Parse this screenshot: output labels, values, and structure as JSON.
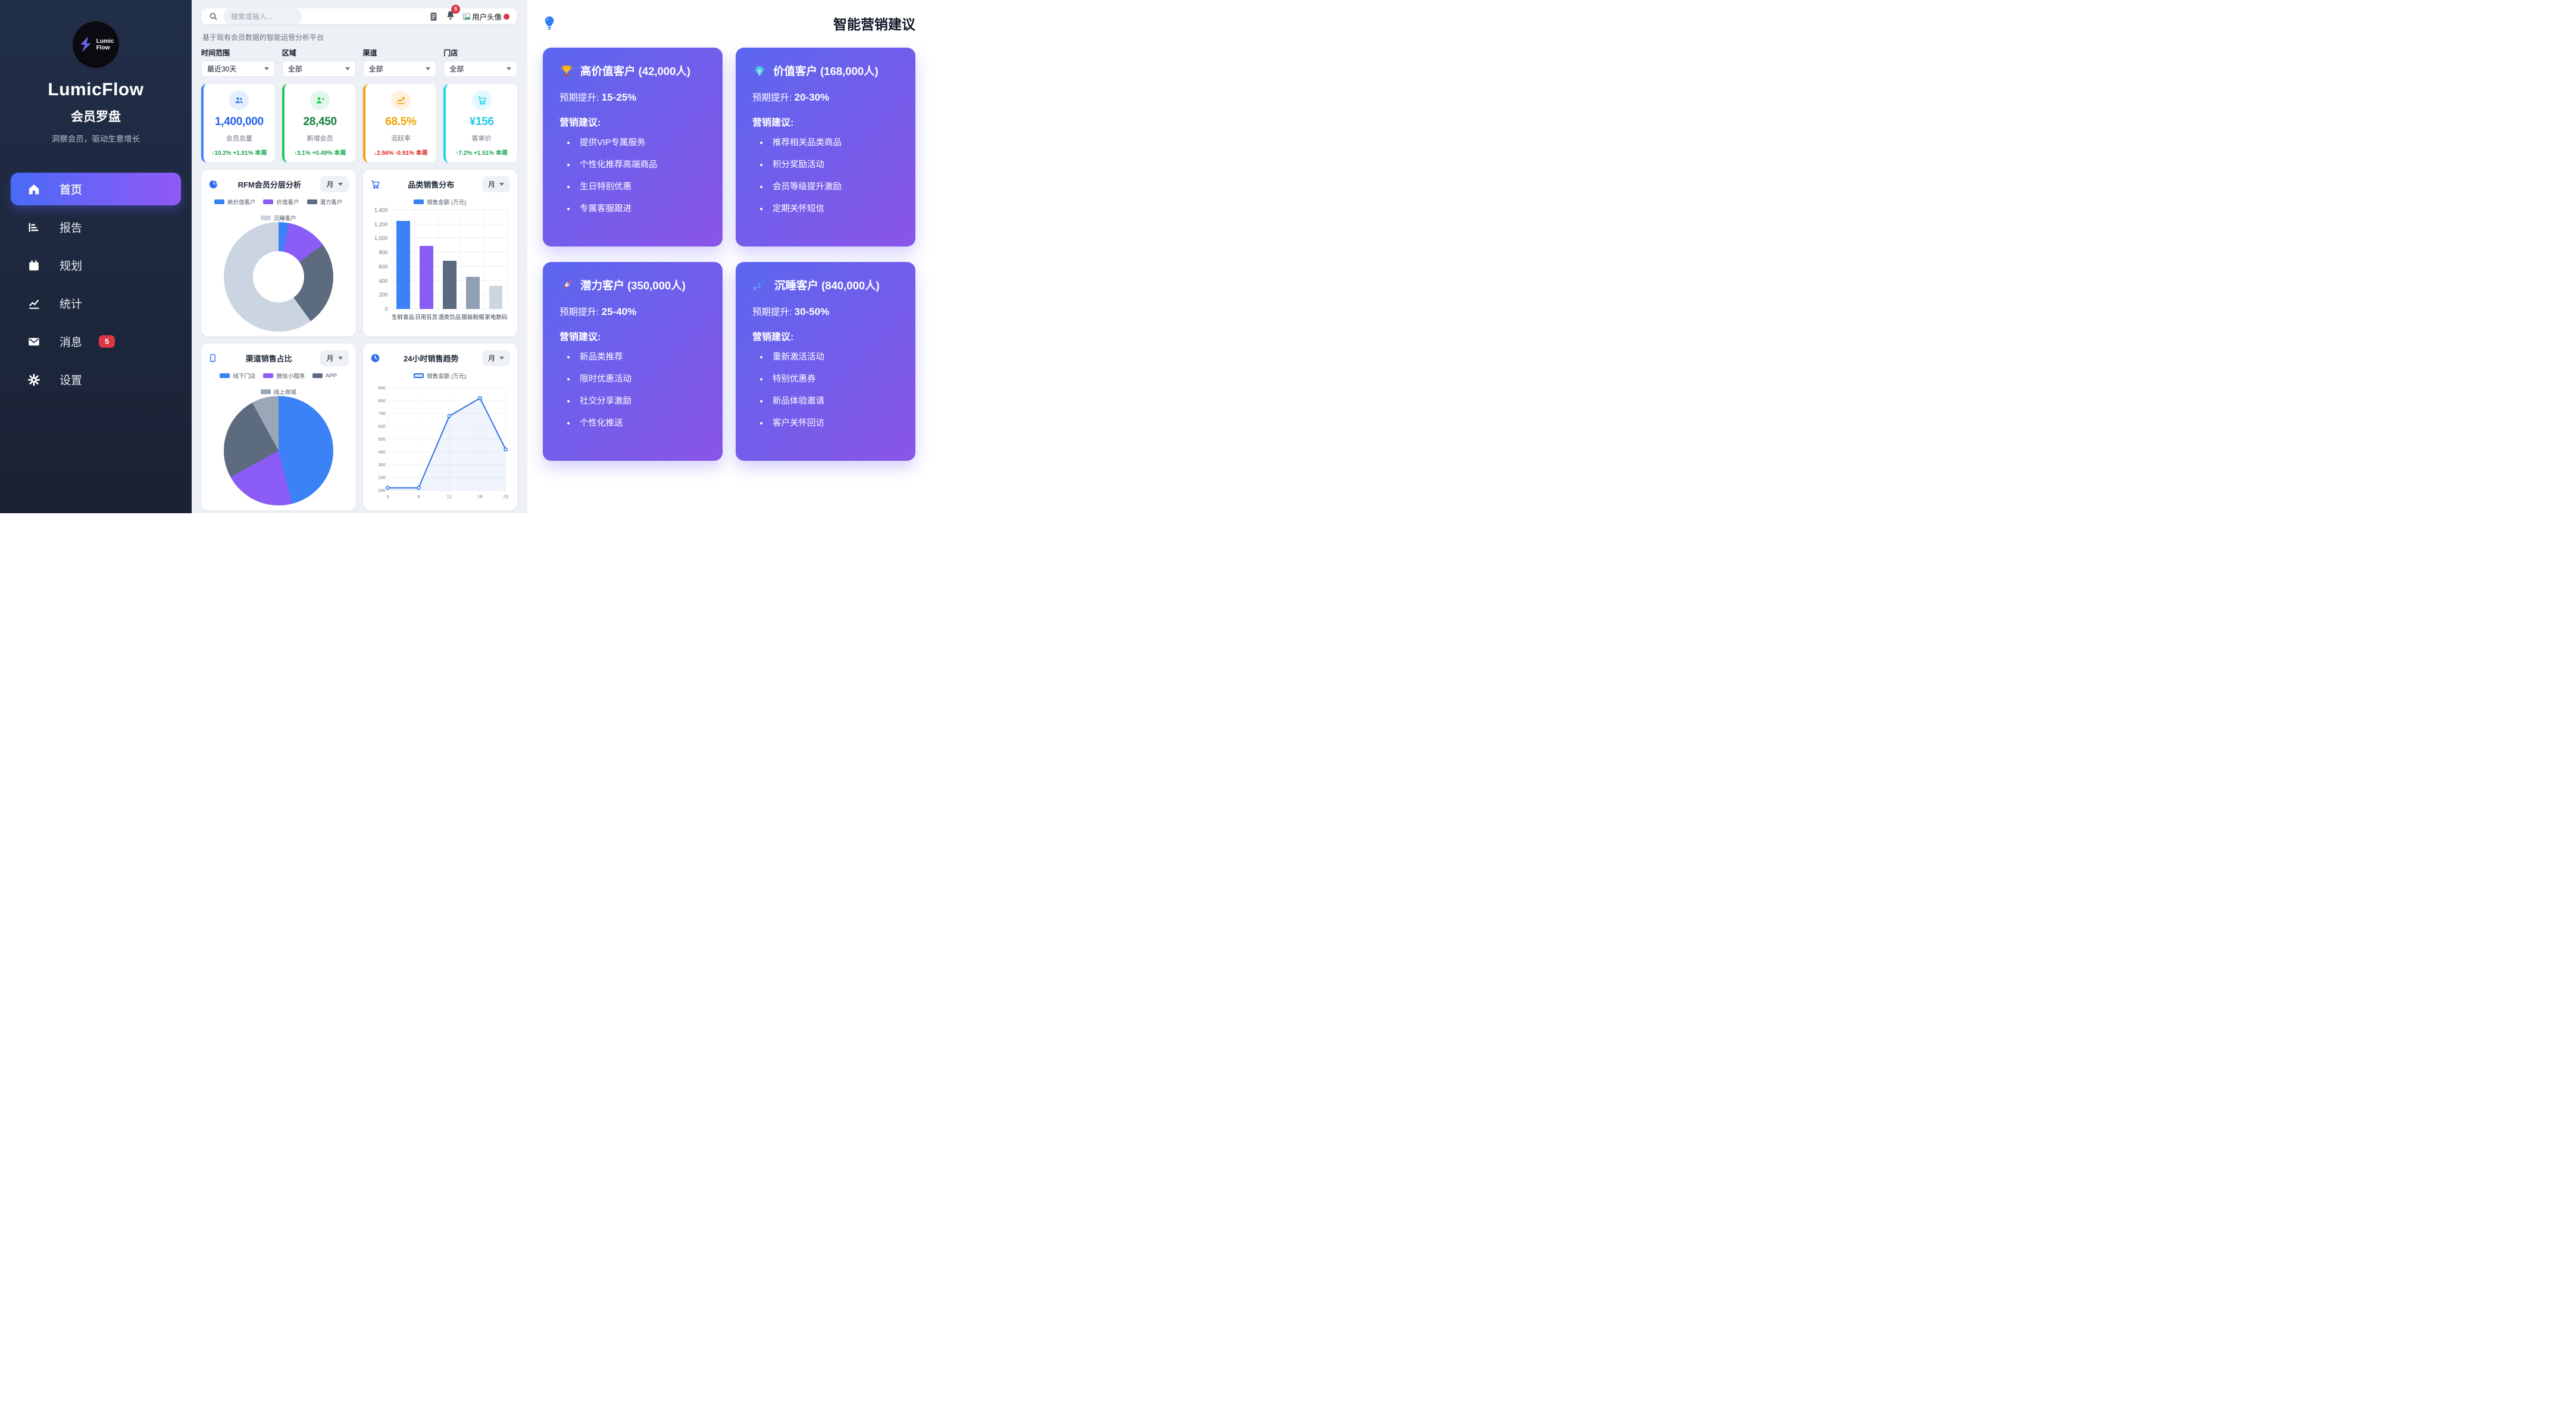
{
  "sidebar": {
    "logo_line1": "Lumic",
    "logo_line2": "Flow",
    "brand": "LumicFlow",
    "subtitle": "会员罗盘",
    "tagline": "洞察会员，驱动生意增长",
    "items": [
      {
        "label": "首页",
        "icon": "home-icon",
        "active": true
      },
      {
        "label": "报告",
        "icon": "report-icon"
      },
      {
        "label": "规划",
        "icon": "calendar-icon"
      },
      {
        "label": "统计",
        "icon": "line-chart-icon"
      },
      {
        "label": "消息",
        "icon": "mail-icon",
        "badge": "5"
      },
      {
        "label": "设置",
        "icon": "gear-icon"
      }
    ]
  },
  "topbar": {
    "search_placeholder": "搜索或输入...",
    "notification_count": "5",
    "avatar_label": "用户头像",
    "icons": [
      "document-icon",
      "bell-icon",
      "broken-image-icon",
      "presence-dot"
    ]
  },
  "filters": {
    "description": "基于现有会员数据的智能运营分析平台",
    "fields": [
      {
        "label": "时间范围",
        "value": "最近30天"
      },
      {
        "label": "区域",
        "value": "全部"
      },
      {
        "label": "渠道",
        "value": "全部"
      },
      {
        "label": "门店",
        "value": "全部"
      }
    ]
  },
  "stats": [
    {
      "value": "1,400,000",
      "label": "会员总量",
      "delta": "↑10.2% +1.01% 本周",
      "num_color": "#2563eb",
      "accent": "#3b82f6",
      "delta_color": "#16a34a",
      "icon": "users-icon"
    },
    {
      "value": "28,450",
      "label": "新增会员",
      "delta": "↑3.1% +0.49% 本周",
      "num_color": "#15803d",
      "accent": "#22c55e",
      "delta_color": "#16a34a",
      "icon": "user-plus-icon"
    },
    {
      "value": "68.5%",
      "label": "活跃率",
      "delta": "↓2.56% -0.91% 本周",
      "num_color": "#f0a400",
      "accent": "#f59e0b",
      "delta_color": "#dc2626",
      "icon": "trend-icon"
    },
    {
      "value": "¥156",
      "label": "客单价",
      "delta": "↑7.2% +1.51% 本周",
      "num_color": "#22c8e6",
      "accent": "#22d3ee",
      "delta_color": "#16a34a",
      "icon": "cart-icon"
    }
  ],
  "chart_data": [
    {
      "id": "rfm",
      "type": "donut",
      "title": "RFM会员分层分析",
      "period": "月",
      "icon": "pie-chart-icon",
      "labels": [
        "高价值客户",
        "价值客户",
        "潜力客户",
        "沉睡客户"
      ],
      "values": [
        3,
        12,
        25,
        60
      ],
      "unit": "%",
      "colors": [
        "#3b82f6",
        "#8b5cf6",
        "#5d6b7f",
        "#cbd5e1"
      ],
      "legend_position": "top",
      "hole": 0.5
    },
    {
      "id": "category",
      "type": "bar",
      "title": "品类销售分布",
      "period": "月",
      "icon": "cart-icon",
      "legend_label": "销售金额 (万元)",
      "categories": [
        "生鲜食品",
        "日用百货",
        "酒类饮品",
        "服装鞋帽",
        "家电数码"
      ],
      "values": [
        1250,
        890,
        680,
        455,
        325
      ],
      "colors": [
        "#3b82f6",
        "#8b5cf6",
        "#5d6b7f",
        "#8fa0b4",
        "#cdd6e0"
      ],
      "ylim": [
        0,
        1400
      ],
      "yticks": [
        0,
        200,
        400,
        600,
        800,
        1000,
        1200,
        1400
      ],
      "grid": true
    },
    {
      "id": "channel",
      "type": "pie",
      "title": "渠道销售占比",
      "period": "月",
      "icon": "phone-icon",
      "labels": [
        "线下门店",
        "微信小程序",
        "APP",
        "线上商城"
      ],
      "values": [
        46,
        21,
        25,
        8
      ],
      "unit": "%",
      "colors": [
        "#3b82f6",
        "#8b5cf6",
        "#5d6b7f",
        "#9aa7b8"
      ],
      "legend_position": "top"
    },
    {
      "id": "hourly",
      "type": "line",
      "title": "24小时销售趋势",
      "period": "月",
      "icon": "clock-icon",
      "legend_label": "销售金额 (万元)",
      "x": [
        0,
        6,
        12,
        18,
        23
      ],
      "values": [
        120,
        120,
        680,
        820,
        420
      ],
      "color": "#2f6fe4",
      "fill": "rgba(47,111,228,0.08)",
      "ylim": [
        100,
        900
      ],
      "yticks": [
        100,
        200,
        300,
        400,
        500,
        600,
        700,
        800,
        900
      ],
      "grid": true
    }
  ],
  "insights": {
    "header": "智能营销建议",
    "header_icon": "lightbulb-icon",
    "uplift_label": "预期提升:",
    "advice_label": "营销建议:",
    "gradient": [
      "#5b66ee",
      "#8a55e8"
    ],
    "cards": [
      {
        "icon": "trophy-icon",
        "title": "高价值客户 (42,000人)",
        "uplift": "15-25%",
        "bullets": [
          "提供VIP专属服务",
          "个性化推荐高端商品",
          "生日特别优惠",
          "专属客服跟进"
        ]
      },
      {
        "icon": "diamond-icon",
        "title": "价值客户 (168,000人)",
        "uplift": "20-30%",
        "bullets": [
          "推荐相关品类商品",
          "积分奖励活动",
          "会员等级提升激励",
          "定期关怀短信"
        ]
      },
      {
        "icon": "rocket-icon",
        "title": "潜力客户 (350,000人)",
        "uplift": "25-40%",
        "bullets": [
          "新品类推荐",
          "限时优惠活动",
          "社交分享激励",
          "个性化推送"
        ]
      },
      {
        "icon": "sleep-icon",
        "title": "沉睡客户 (840,000人)",
        "uplift": "30-50%",
        "bullets": [
          "重新激活活动",
          "特别优惠券",
          "新品体验邀请",
          "客户关怀回访"
        ]
      }
    ]
  }
}
